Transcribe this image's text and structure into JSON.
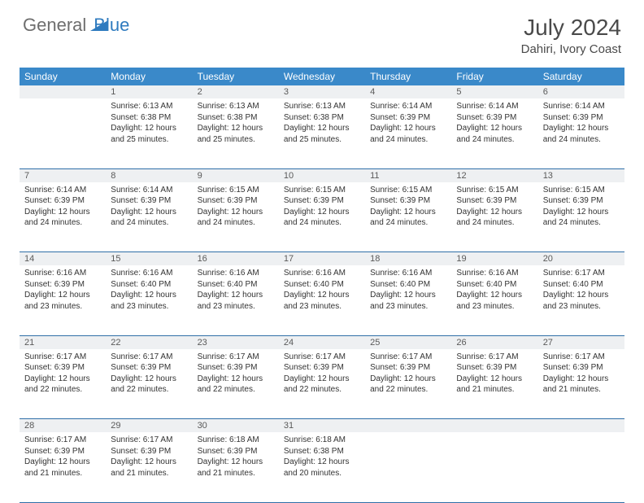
{
  "logo": {
    "general": "General",
    "blue": "Blue"
  },
  "title": "July 2024",
  "location": "Dahiri, Ivory Coast",
  "colors": {
    "header_bg": "#3a89c9",
    "header_text": "#ffffff",
    "daynum_bg": "#eef0f2",
    "row_border": "#2f6fa8",
    "logo_gray": "#6e6e6e",
    "logo_blue": "#2f7bbf"
  },
  "weekdays": [
    "Sunday",
    "Monday",
    "Tuesday",
    "Wednesday",
    "Thursday",
    "Friday",
    "Saturday"
  ],
  "weeks": [
    [
      {
        "n": "",
        "lines": []
      },
      {
        "n": "1",
        "lines": [
          "Sunrise: 6:13 AM",
          "Sunset: 6:38 PM",
          "Daylight: 12 hours and 25 minutes."
        ]
      },
      {
        "n": "2",
        "lines": [
          "Sunrise: 6:13 AM",
          "Sunset: 6:38 PM",
          "Daylight: 12 hours and 25 minutes."
        ]
      },
      {
        "n": "3",
        "lines": [
          "Sunrise: 6:13 AM",
          "Sunset: 6:38 PM",
          "Daylight: 12 hours and 25 minutes."
        ]
      },
      {
        "n": "4",
        "lines": [
          "Sunrise: 6:14 AM",
          "Sunset: 6:39 PM",
          "Daylight: 12 hours and 24 minutes."
        ]
      },
      {
        "n": "5",
        "lines": [
          "Sunrise: 6:14 AM",
          "Sunset: 6:39 PM",
          "Daylight: 12 hours and 24 minutes."
        ]
      },
      {
        "n": "6",
        "lines": [
          "Sunrise: 6:14 AM",
          "Sunset: 6:39 PM",
          "Daylight: 12 hours and 24 minutes."
        ]
      }
    ],
    [
      {
        "n": "7",
        "lines": [
          "Sunrise: 6:14 AM",
          "Sunset: 6:39 PM",
          "Daylight: 12 hours and 24 minutes."
        ]
      },
      {
        "n": "8",
        "lines": [
          "Sunrise: 6:14 AM",
          "Sunset: 6:39 PM",
          "Daylight: 12 hours and 24 minutes."
        ]
      },
      {
        "n": "9",
        "lines": [
          "Sunrise: 6:15 AM",
          "Sunset: 6:39 PM",
          "Daylight: 12 hours and 24 minutes."
        ]
      },
      {
        "n": "10",
        "lines": [
          "Sunrise: 6:15 AM",
          "Sunset: 6:39 PM",
          "Daylight: 12 hours and 24 minutes."
        ]
      },
      {
        "n": "11",
        "lines": [
          "Sunrise: 6:15 AM",
          "Sunset: 6:39 PM",
          "Daylight: 12 hours and 24 minutes."
        ]
      },
      {
        "n": "12",
        "lines": [
          "Sunrise: 6:15 AM",
          "Sunset: 6:39 PM",
          "Daylight: 12 hours and 24 minutes."
        ]
      },
      {
        "n": "13",
        "lines": [
          "Sunrise: 6:15 AM",
          "Sunset: 6:39 PM",
          "Daylight: 12 hours and 24 minutes."
        ]
      }
    ],
    [
      {
        "n": "14",
        "lines": [
          "Sunrise: 6:16 AM",
          "Sunset: 6:39 PM",
          "Daylight: 12 hours and 23 minutes."
        ]
      },
      {
        "n": "15",
        "lines": [
          "Sunrise: 6:16 AM",
          "Sunset: 6:40 PM",
          "Daylight: 12 hours and 23 minutes."
        ]
      },
      {
        "n": "16",
        "lines": [
          "Sunrise: 6:16 AM",
          "Sunset: 6:40 PM",
          "Daylight: 12 hours and 23 minutes."
        ]
      },
      {
        "n": "17",
        "lines": [
          "Sunrise: 6:16 AM",
          "Sunset: 6:40 PM",
          "Daylight: 12 hours and 23 minutes."
        ]
      },
      {
        "n": "18",
        "lines": [
          "Sunrise: 6:16 AM",
          "Sunset: 6:40 PM",
          "Daylight: 12 hours and 23 minutes."
        ]
      },
      {
        "n": "19",
        "lines": [
          "Sunrise: 6:16 AM",
          "Sunset: 6:40 PM",
          "Daylight: 12 hours and 23 minutes."
        ]
      },
      {
        "n": "20",
        "lines": [
          "Sunrise: 6:17 AM",
          "Sunset: 6:40 PM",
          "Daylight: 12 hours and 23 minutes."
        ]
      }
    ],
    [
      {
        "n": "21",
        "lines": [
          "Sunrise: 6:17 AM",
          "Sunset: 6:39 PM",
          "Daylight: 12 hours and 22 minutes."
        ]
      },
      {
        "n": "22",
        "lines": [
          "Sunrise: 6:17 AM",
          "Sunset: 6:39 PM",
          "Daylight: 12 hours and 22 minutes."
        ]
      },
      {
        "n": "23",
        "lines": [
          "Sunrise: 6:17 AM",
          "Sunset: 6:39 PM",
          "Daylight: 12 hours and 22 minutes."
        ]
      },
      {
        "n": "24",
        "lines": [
          "Sunrise: 6:17 AM",
          "Sunset: 6:39 PM",
          "Daylight: 12 hours and 22 minutes."
        ]
      },
      {
        "n": "25",
        "lines": [
          "Sunrise: 6:17 AM",
          "Sunset: 6:39 PM",
          "Daylight: 12 hours and 22 minutes."
        ]
      },
      {
        "n": "26",
        "lines": [
          "Sunrise: 6:17 AM",
          "Sunset: 6:39 PM",
          "Daylight: 12 hours and 21 minutes."
        ]
      },
      {
        "n": "27",
        "lines": [
          "Sunrise: 6:17 AM",
          "Sunset: 6:39 PM",
          "Daylight: 12 hours and 21 minutes."
        ]
      }
    ],
    [
      {
        "n": "28",
        "lines": [
          "Sunrise: 6:17 AM",
          "Sunset: 6:39 PM",
          "Daylight: 12 hours and 21 minutes."
        ]
      },
      {
        "n": "29",
        "lines": [
          "Sunrise: 6:17 AM",
          "Sunset: 6:39 PM",
          "Daylight: 12 hours and 21 minutes."
        ]
      },
      {
        "n": "30",
        "lines": [
          "Sunrise: 6:18 AM",
          "Sunset: 6:39 PM",
          "Daylight: 12 hours and 21 minutes."
        ]
      },
      {
        "n": "31",
        "lines": [
          "Sunrise: 6:18 AM",
          "Sunset: 6:38 PM",
          "Daylight: 12 hours and 20 minutes."
        ]
      },
      {
        "n": "",
        "lines": []
      },
      {
        "n": "",
        "lines": []
      },
      {
        "n": "",
        "lines": []
      }
    ]
  ]
}
